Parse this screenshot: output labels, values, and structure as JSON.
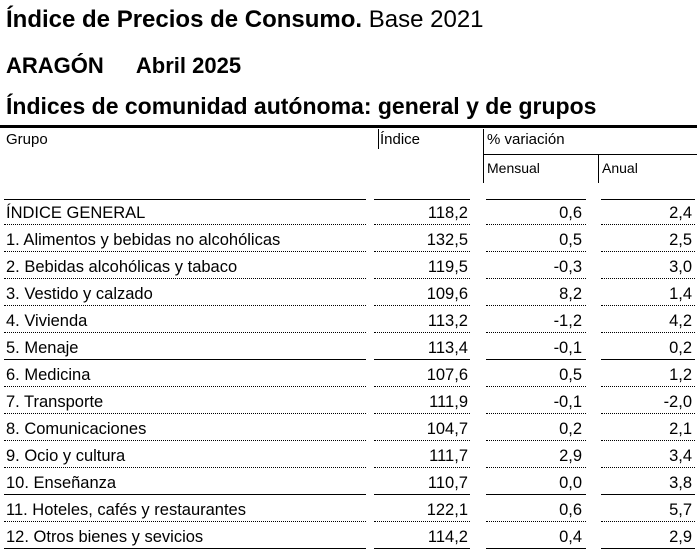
{
  "title": {
    "bold": "Índice de Precios de Consumo.",
    "normal": "Base 2021"
  },
  "region": {
    "name": "ARAGÓN",
    "period": "Abril 2025"
  },
  "table_title": "Índices de comunidad autónoma: general y de grupos",
  "headers": {
    "group": "Grupo",
    "index": "Índice",
    "variation": "% variación",
    "monthly": "Mensual",
    "annual": "Anual"
  },
  "rows": [
    {
      "name": "ÍNDICE GENERAL",
      "index": "118,2",
      "monthly": "0,6",
      "annual": "2,4"
    },
    {
      "name": "1. Alimentos y bebidas no alcohólicas",
      "index": "132,5",
      "monthly": "0,5",
      "annual": "2,5"
    },
    {
      "name": "2. Bebidas alcohólicas y tabaco",
      "index": "119,5",
      "monthly": "-0,3",
      "annual": "3,0"
    },
    {
      "name": "3. Vestido y calzado",
      "index": "109,6",
      "monthly": "8,2",
      "annual": "1,4"
    },
    {
      "name": "4. Vivienda",
      "index": "113,2",
      "monthly": "-1,2",
      "annual": "4,2"
    },
    {
      "name": "5. Menaje",
      "index": "113,4",
      "monthly": "-0,1",
      "annual": "0,2"
    },
    {
      "name": "6. Medicina",
      "index": "107,6",
      "monthly": "0,5",
      "annual": "1,2"
    },
    {
      "name": "7. Transporte",
      "index": "111,9",
      "monthly": "-0,1",
      "annual": "-2,0"
    },
    {
      "name": "8. Comunicaciones",
      "index": "104,7",
      "monthly": "0,2",
      "annual": "2,1"
    },
    {
      "name": "9. Ocio y cultura",
      "index": "111,7",
      "monthly": "2,9",
      "annual": "3,4"
    },
    {
      "name": "10. Enseñanza",
      "index": "110,7",
      "monthly": "0,0",
      "annual": "3,8"
    },
    {
      "name": "11. Hoteles, cafés y restaurantes",
      "index": "122,1",
      "monthly": "0,6",
      "annual": "5,7"
    },
    {
      "name": "12. Otros bienes y sevicios",
      "index": "114,2",
      "monthly": "0,4",
      "annual": "2,9"
    }
  ]
}
